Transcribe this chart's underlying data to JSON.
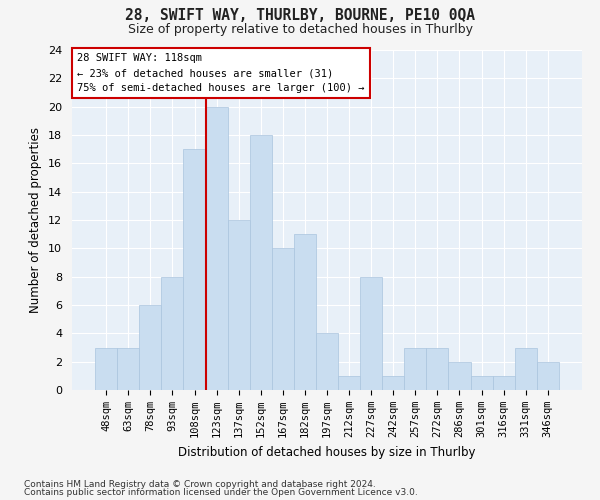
{
  "title1": "28, SWIFT WAY, THURLBY, BOURNE, PE10 0QA",
  "title2": "Size of property relative to detached houses in Thurlby",
  "xlabel": "Distribution of detached houses by size in Thurlby",
  "ylabel": "Number of detached properties",
  "categories": [
    "48sqm",
    "63sqm",
    "78sqm",
    "93sqm",
    "108sqm",
    "123sqm",
    "137sqm",
    "152sqm",
    "167sqm",
    "182sqm",
    "197sqm",
    "212sqm",
    "227sqm",
    "242sqm",
    "257sqm",
    "272sqm",
    "286sqm",
    "301sqm",
    "316sqm",
    "331sqm",
    "346sqm"
  ],
  "values": [
    3,
    3,
    6,
    8,
    17,
    20,
    12,
    18,
    10,
    11,
    4,
    1,
    8,
    1,
    3,
    3,
    2,
    1,
    1,
    3,
    2
  ],
  "bar_color": "#c9ddf0",
  "bar_edge_color": "#aac4de",
  "vline_color": "#cc0000",
  "annotation_text1": "28 SWIFT WAY: 118sqm",
  "annotation_text2": "← 23% of detached houses are smaller (31)",
  "annotation_text3": "75% of semi-detached houses are larger (100) →",
  "annotation_box_color": "#ffffff",
  "annotation_border_color": "#cc0000",
  "ylim": [
    0,
    24
  ],
  "yticks": [
    0,
    2,
    4,
    6,
    8,
    10,
    12,
    14,
    16,
    18,
    20,
    22,
    24
  ],
  "footnote1": "Contains HM Land Registry data © Crown copyright and database right 2024.",
  "footnote2": "Contains public sector information licensed under the Open Government Licence v3.0.",
  "bg_color": "#e8f0f8",
  "grid_color": "#ffffff",
  "fig_bg_color": "#f5f5f5"
}
